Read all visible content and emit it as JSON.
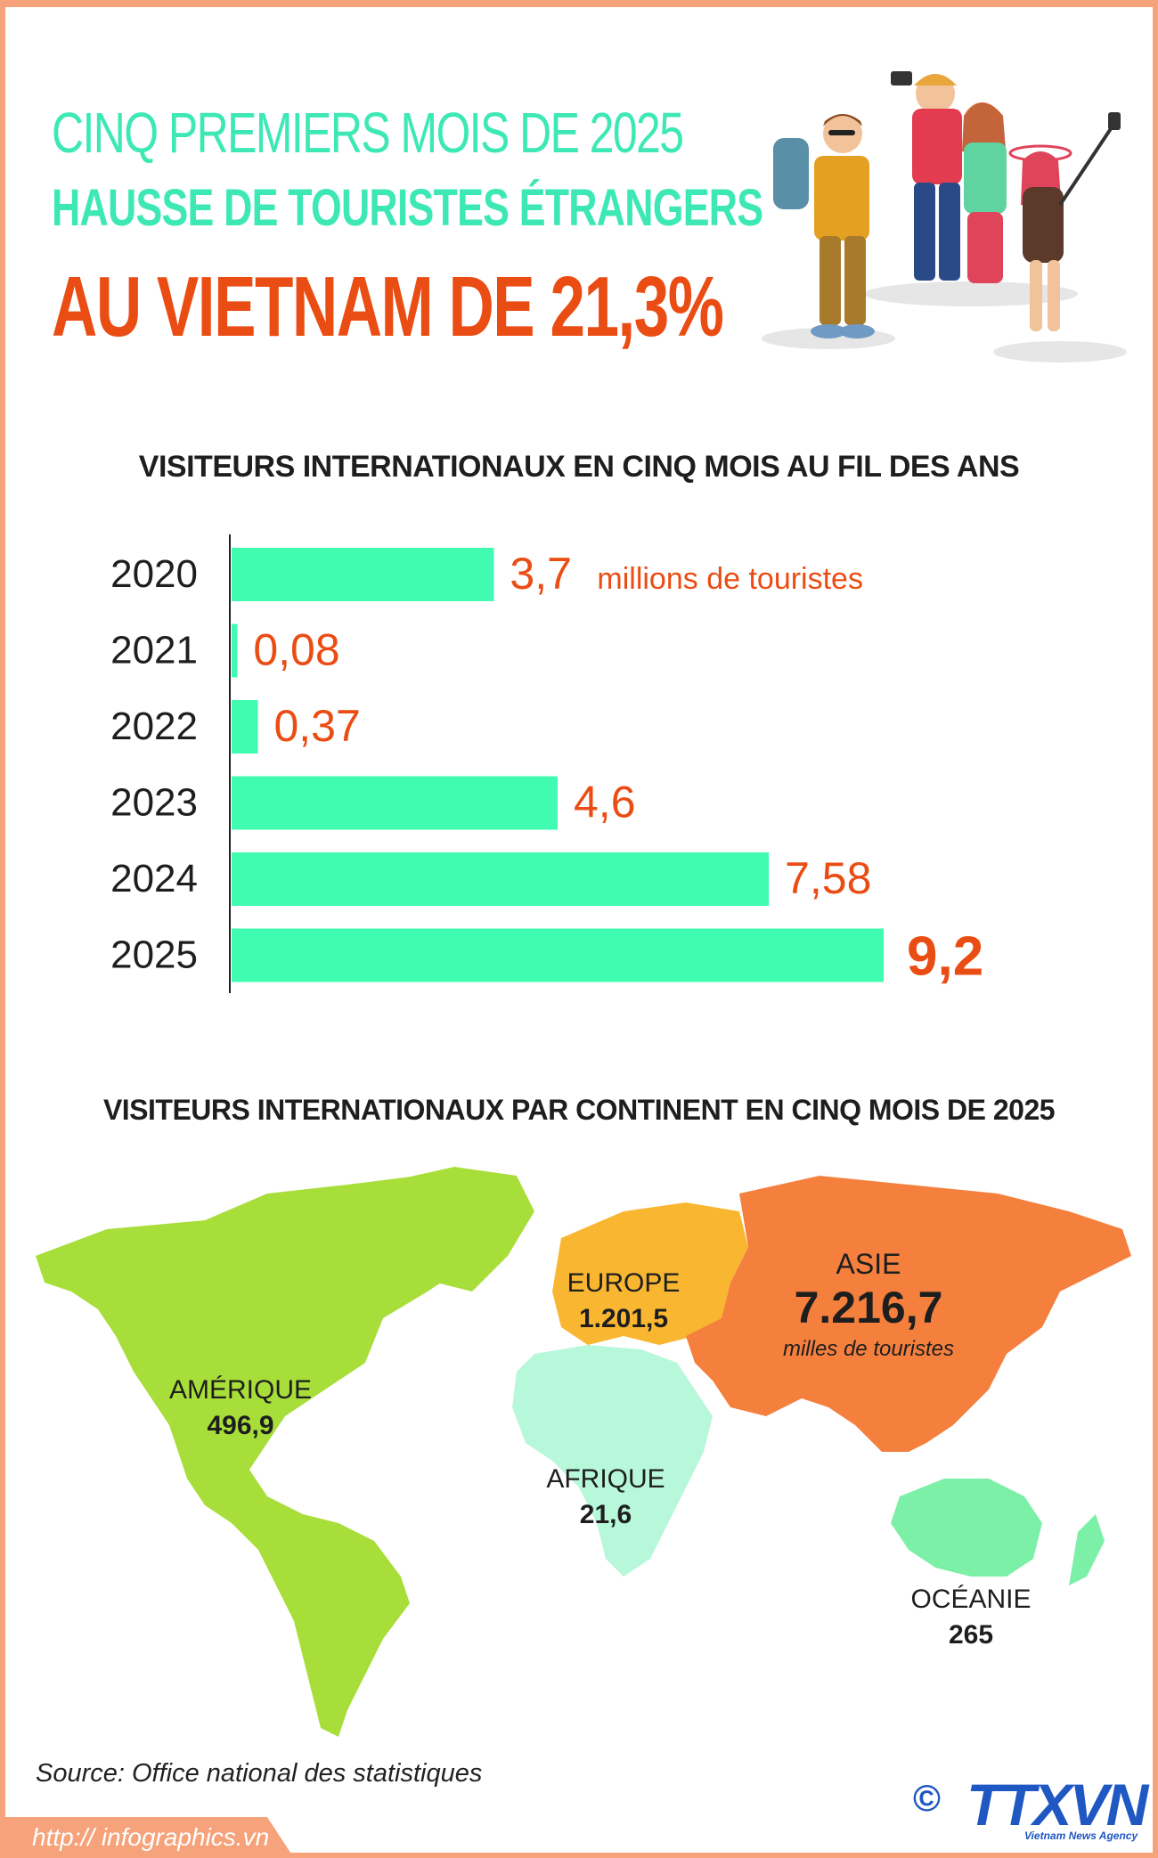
{
  "header": {
    "line1": "CINQ PREMIERS MOIS DE 2025",
    "line2": "HAUSSE DE TOURISTES ÉTRANGERS",
    "line3": "AU VIETNAM DE 21,3%"
  },
  "colors": {
    "accent_mint": "#3ee8b5",
    "accent_orange": "#ea4d14",
    "frame": "#f6a27a"
  },
  "chart_data": [
    {
      "type": "bar",
      "orientation": "horizontal",
      "title": "VISITEURS INTERNATIONAUX EN CINQ MOIS AU FIL DES ANS",
      "categories": [
        "2020",
        "2021",
        "2022",
        "2023",
        "2024",
        "2025"
      ],
      "values": [
        3.7,
        0.08,
        0.37,
        4.6,
        7.58,
        9.2
      ],
      "value_labels": [
        "3,7",
        "0,08",
        "0,37",
        "4,6",
        "7,58",
        "9,2"
      ],
      "unit_label": "millions de touristes",
      "bar_color": "#3ffcb0",
      "label_color": "#ea4d14",
      "xlim": [
        0,
        9.2
      ]
    },
    {
      "type": "map",
      "title": "VISITEURS INTERNATIONAUX PAR CONTINENT EN CINQ MOIS DE 2025",
      "unit_label": "milles de touristes",
      "regions": [
        {
          "name": "AMÉRIQUE",
          "value": "496,9",
          "color": "#a8de3a"
        },
        {
          "name": "EUROPE",
          "value": "1.201,5",
          "color": "#f9b731"
        },
        {
          "name": "ASIE",
          "value": "7.216,7",
          "color": "#f5803e"
        },
        {
          "name": "AFRIQUE",
          "value": "21,6",
          "color": "#b7f8da"
        },
        {
          "name": "OCÉANIE",
          "value": "265",
          "color": "#7df0a8"
        }
      ]
    }
  ],
  "footer": {
    "source": "Source: Office national des statistiques",
    "url": "http:// infographics.vn",
    "copyright": "©",
    "logo": "TTXVN",
    "logo_sub": "Vietnam News Agency"
  }
}
